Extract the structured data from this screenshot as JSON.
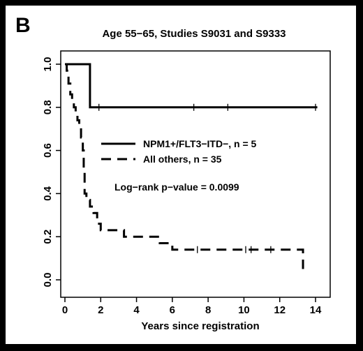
{
  "panel_label": "B",
  "chart_data": {
    "type": "line",
    "title": "Age 55−65, Studies S9031 and S9333",
    "xlabel": "Years since registration",
    "ylabel": "",
    "xlim": [
      0,
      14.4
    ],
    "ylim": [
      0,
      1.0
    ],
    "x_ticks": [
      0,
      2,
      4,
      6,
      8,
      10,
      12,
      14
    ],
    "y_ticks": [
      0.0,
      0.2,
      0.4,
      0.6,
      0.8,
      1.0
    ],
    "x_tick_labels": [
      "0",
      "2",
      "4",
      "6",
      "8",
      "10",
      "12",
      "14"
    ],
    "y_tick_labels": [
      "0.0",
      "0.2",
      "0.4",
      "0.6",
      "0.8",
      "1.0"
    ],
    "grid": false,
    "legend_position": "center",
    "series": [
      {
        "name": "NPM1+/FLT3−ITD−, n = 5",
        "style": "solid",
        "color": "#000000",
        "steps": [
          [
            0,
            1.0
          ],
          [
            1.4,
            0.8
          ],
          [
            14.1,
            0.8
          ]
        ],
        "censor_x": [
          1.9,
          7.2,
          9.1,
          14.0
        ]
      },
      {
        "name": "All others, n = 35",
        "style": "dashed",
        "color": "#000000",
        "steps": [
          [
            0,
            1.0
          ],
          [
            0.1,
            0.97
          ],
          [
            0.2,
            0.91
          ],
          [
            0.3,
            0.86
          ],
          [
            0.4,
            0.83
          ],
          [
            0.5,
            0.8
          ],
          [
            0.6,
            0.77
          ],
          [
            0.7,
            0.74
          ],
          [
            0.8,
            0.71
          ],
          [
            0.9,
            0.66
          ],
          [
            1.0,
            0.6
          ],
          [
            1.05,
            0.51
          ],
          [
            1.1,
            0.4
          ],
          [
            1.2,
            0.37
          ],
          [
            1.4,
            0.34
          ],
          [
            1.6,
            0.31
          ],
          [
            1.8,
            0.26
          ],
          [
            2.0,
            0.23
          ],
          [
            3.3,
            0.2
          ],
          [
            5.3,
            0.17
          ],
          [
            6.0,
            0.14
          ],
          [
            13.3,
            0.05
          ]
        ],
        "end_x": 13.3,
        "censor_x": [
          7.4,
          10.1,
          10.4,
          11.5
        ]
      }
    ],
    "annotation": "Log−rank p−value = 0.0099"
  }
}
